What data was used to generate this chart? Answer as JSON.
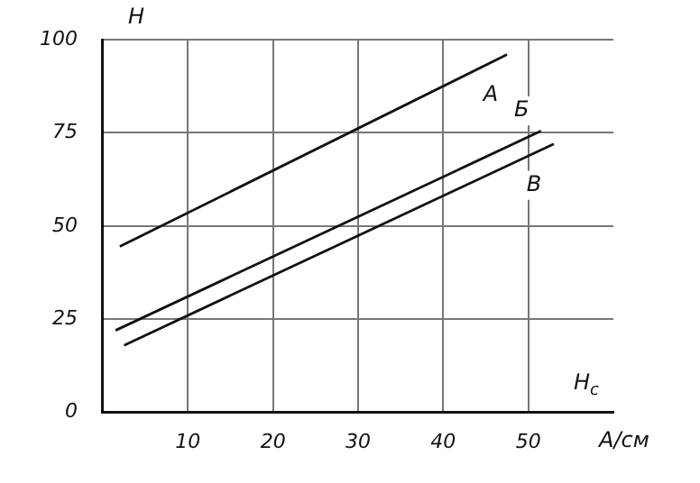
{
  "chart_data": {
    "type": "line",
    "ylabel": "H",
    "xlabel": "H$_{c}$ A/см",
    "xlim": [
      0,
      60
    ],
    "xticks": [
      10,
      20,
      30,
      40,
      50
    ],
    "ylim": [
      0,
      100
    ],
    "yticks": [
      0,
      25,
      50,
      75,
      100
    ],
    "grid": true,
    "marker": "none",
    "line_style": "solid",
    "series": [
      {
        "name": "A",
        "color": "#111111",
        "x": [
          2,
          47.5
        ],
        "values": [
          44.5,
          96
        ]
      },
      {
        "name": "Б",
        "color": "#111111",
        "x": [
          1.5,
          51.5
        ],
        "values": [
          22,
          75.5
        ]
      },
      {
        "name": "В",
        "color": "#111111",
        "x": [
          2.5,
          53
        ],
        "values": [
          18,
          72
        ]
      }
    ]
  }
}
